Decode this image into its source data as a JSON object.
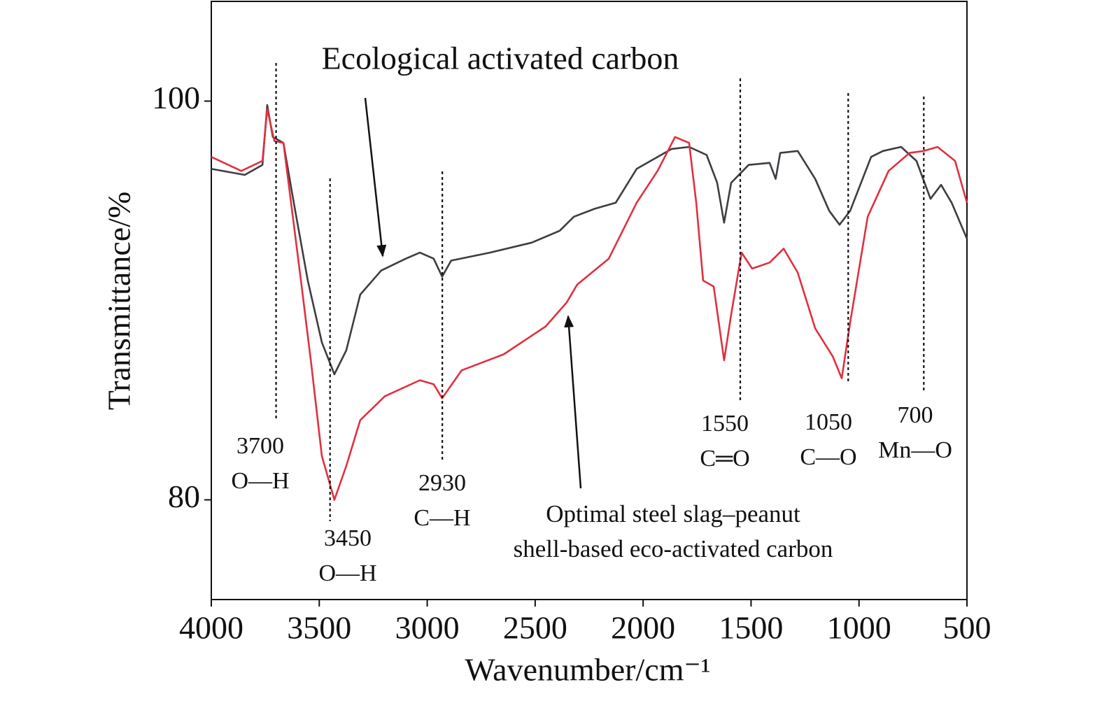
{
  "chart_data": {
    "type": "line",
    "xlabel": "Wavenumber/cm⁻¹",
    "ylabel": "Transmittance/%",
    "xlim": [
      4000,
      500
    ],
    "ylim": [
      75,
      105
    ],
    "xticks": [
      4000,
      3500,
      3000,
      2500,
      2000,
      1500,
      1000,
      500
    ],
    "yticks": [
      80,
      100
    ],
    "series": [
      {
        "color": "#3d3d42",
        "x": [
          4000,
          3845,
          3763,
          3741,
          3715,
          3666,
          3618,
          3553,
          3488,
          3430,
          3375,
          3310,
          3213,
          3099,
          3034,
          2970,
          2931,
          2889,
          2710,
          2516,
          2386,
          2321,
          2224,
          2127,
          2030,
          1868,
          1787,
          1706,
          1657,
          1625,
          1592,
          1511,
          1414,
          1386,
          1365,
          1284,
          1203,
          1138,
          1090,
          1041,
          944,
          889,
          805,
          734,
          669,
          620,
          571,
          500
        ],
        "values": [
          96.6,
          96.3,
          96.8,
          99.8,
          98.2,
          97.9,
          94.9,
          91.0,
          87.9,
          86.3,
          87.5,
          90.3,
          91.5,
          92.1,
          92.4,
          92.1,
          91.2,
          92.0,
          92.4,
          92.9,
          93.5,
          94.2,
          94.6,
          94.9,
          96.6,
          97.6,
          97.7,
          97.3,
          95.9,
          93.9,
          95.9,
          96.8,
          96.9,
          96.1,
          97.4,
          97.5,
          96.1,
          94.5,
          93.8,
          94.5,
          97.2,
          97.5,
          97.7,
          97.0,
          95.1,
          95.8,
          94.9,
          93.1
        ]
      },
      {
        "color": "#e0303f",
        "x": [
          4000,
          3861,
          3763,
          3741,
          3708,
          3666,
          3634,
          3585,
          3537,
          3488,
          3430,
          3375,
          3310,
          3196,
          3034,
          2970,
          2931,
          2840,
          2646,
          2451,
          2354,
          2305,
          2159,
          2030,
          1933,
          1852,
          1787,
          1754,
          1722,
          1673,
          1625,
          1592,
          1544,
          1495,
          1414,
          1349,
          1284,
          1203,
          1122,
          1080,
          1041,
          960,
          863,
          766,
          701,
          636,
          555,
          500
        ],
        "values": [
          97.2,
          96.5,
          97.0,
          99.6,
          98.0,
          97.9,
          95.2,
          91.0,
          86.8,
          82.2,
          80.0,
          81.7,
          84.0,
          85.2,
          86.0,
          85.8,
          85.1,
          86.5,
          87.3,
          88.7,
          89.9,
          90.8,
          92.1,
          94.9,
          96.5,
          98.2,
          97.9,
          94.9,
          91.0,
          90.7,
          87.0,
          89.3,
          92.4,
          91.6,
          91.9,
          92.6,
          91.4,
          88.6,
          87.2,
          86.1,
          88.9,
          94.2,
          96.5,
          97.4,
          97.5,
          97.7,
          97.0,
          94.9
        ]
      }
    ],
    "annotations": [
      {
        "lines": [
          "Ecological activated carbon"
        ]
      },
      {
        "lines": [
          "Optimal steel slag–peanut",
          "shell-based eco-activated carbon"
        ]
      }
    ],
    "peaks": [
      {
        "x": 3700,
        "bond": "O—H"
      },
      {
        "x": 3450,
        "bond": "O—H"
      },
      {
        "x": 2930,
        "bond": "C—H"
      },
      {
        "x": 1550,
        "bond": "C═O"
      },
      {
        "x": 1050,
        "bond": "C—O"
      },
      {
        "x": 700,
        "bond": "Mn—O"
      }
    ]
  }
}
